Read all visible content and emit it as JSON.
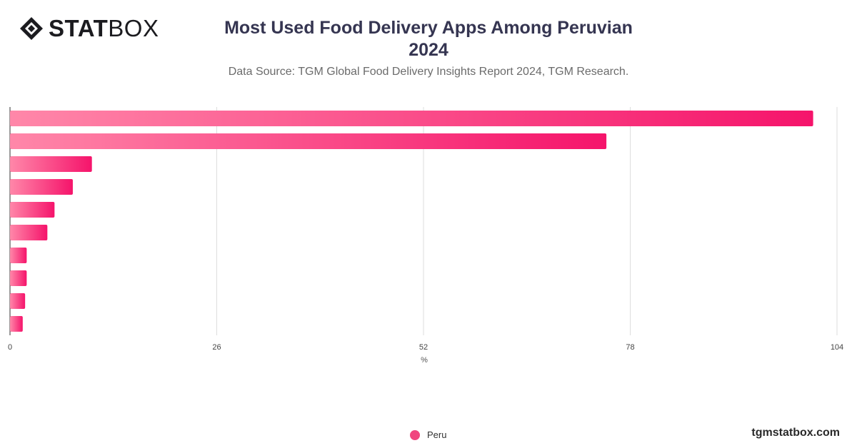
{
  "brand": {
    "logo_bold": "STAT",
    "logo_light": "BOX",
    "logo_icon": "statbox-diamond-logo",
    "footer_url": "tgmstatbox.com"
  },
  "header": {
    "title_line1": "Most Used Food Delivery Apps Among Peruvian",
    "title_line2": "2024",
    "subtitle": "Data Source: TGM Global Food Delivery Insights Report 2024, TGM Research."
  },
  "chart_data": {
    "type": "bar",
    "orientation": "horizontal",
    "title": "Most Used Food Delivery Apps Among Peruvian 2024",
    "xlabel": "%",
    "xlim": [
      0,
      104
    ],
    "x_ticks": [
      "0",
      "26",
      "52",
      "78",
      "104"
    ],
    "grid": true,
    "legend_position": "bottom-center",
    "series": [
      {
        "name": "Peru",
        "color": "#f0457f",
        "gradient": [
          "#ff87a9",
          "#f5146b"
        ],
        "values": [
          101,
          75,
          10.3,
          7.9,
          5.6,
          4.7,
          2.1,
          2.1,
          1.9,
          1.6
        ]
      }
    ]
  }
}
